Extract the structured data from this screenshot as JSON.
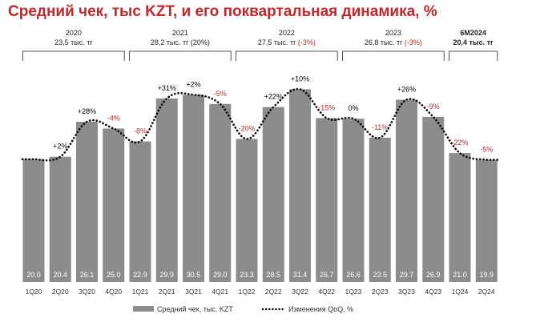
{
  "title": "Средний чек, тыс KZT, и его поквартальная динамика, %",
  "colors": {
    "bar": "#8c8c8c",
    "title": "#c0282d",
    "negative": "#c0282d",
    "positive": "#000000",
    "line": "#000000",
    "bracket": "#555555"
  },
  "year_groups": [
    {
      "year": "2020",
      "summary": "23,5 тыс. тг",
      "change": "",
      "bold": false
    },
    {
      "year": "2021",
      "summary": "28,2 тыс. тг",
      "change": "(20%)",
      "bold": false
    },
    {
      "year": "2022",
      "summary": "27,5 тыс. тг",
      "change": "(-3%)",
      "bold": false
    },
    {
      "year": "2023",
      "summary": "26,8 тыс. тг",
      "change": "(-3%)",
      "bold": false
    },
    {
      "year": "6M2024",
      "summary": "20,4 тыс. тг",
      "change": "",
      "bold": true
    }
  ],
  "legend": {
    "bar_label": "Средний чек, тыс. KZT",
    "line_label": "Изменения QoQ, %"
  },
  "chart_data": {
    "type": "bar",
    "categories": [
      "1Q20",
      "2Q20",
      "3Q20",
      "4Q20",
      "1Q21",
      "2Q21",
      "3Q21",
      "4Q21",
      "1Q22",
      "2Q22",
      "3Q22",
      "4Q22",
      "1Q23",
      "2Q23",
      "3Q23",
      "4Q23",
      "1Q24",
      "2Q24"
    ],
    "series": [
      {
        "name": "Средний чек, тыс. KZT",
        "type": "bar",
        "values": [
          20.0,
          20.4,
          26.1,
          25.0,
          22.9,
          29.9,
          30.5,
          29.0,
          23.3,
          28.5,
          31.4,
          26.7,
          26.6,
          23.5,
          29.7,
          26.9,
          21.0,
          19.9
        ],
        "labels": [
          "20.0",
          "20.4",
          "26.1",
          "25.0",
          "22.9",
          "29.9",
          "30.5",
          "29.0",
          "23.3",
          "28.5",
          "31.4",
          "26.7",
          "26.6",
          "23.5",
          "29.7",
          "26.9",
          "21.0",
          "19.9"
        ]
      },
      {
        "name": "Изменения QoQ, %",
        "type": "line",
        "values": [
          null,
          2,
          28,
          -4,
          -8,
          31,
          2,
          -5,
          -20,
          22,
          10,
          -15,
          0,
          -11,
          26,
          -9,
          -22,
          -5
        ],
        "labels": [
          "",
          "+2%",
          "+28%",
          "-4%",
          "-8%",
          "+31%",
          "+2%",
          "-5%",
          "-20%",
          "+22%",
          "+10%",
          "-15%",
          "0%",
          "-11%",
          "+26%",
          "-9%",
          "-22%",
          "-5%"
        ]
      }
    ],
    "xlabel": "",
    "ylabel": "",
    "legend_position": "bottom",
    "grid": false
  }
}
